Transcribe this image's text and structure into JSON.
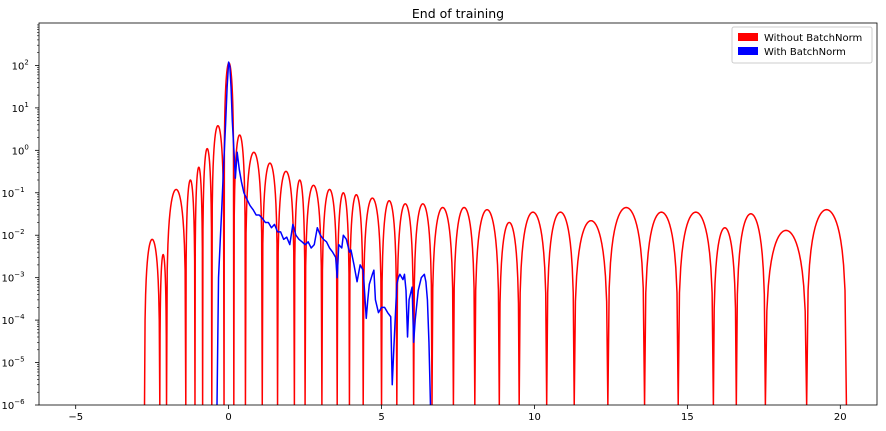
{
  "chart_data": {
    "type": "line",
    "title": "End of training",
    "xlabel": "",
    "ylabel": "",
    "yscale": "log",
    "xlim": [
      -6.2,
      21.2
    ],
    "ylim": [
      1e-06,
      1000
    ],
    "x_ticks": [
      {
        "value": -5,
        "label": "−5"
      },
      {
        "value": 0,
        "label": "0"
      },
      {
        "value": 5,
        "label": "5"
      },
      {
        "value": 10,
        "label": "10"
      },
      {
        "value": 15,
        "label": "15"
      },
      {
        "value": 20,
        "label": "20"
      }
    ],
    "y_ticks": [
      {
        "exp": 2,
        "label": "10",
        "sup": "2"
      },
      {
        "exp": 1,
        "label": "10",
        "sup": "1"
      },
      {
        "exp": 0,
        "label": "10",
        "sup": "0"
      },
      {
        "exp": -1,
        "label": "10",
        "sup": "−1"
      },
      {
        "exp": -2,
        "label": "10",
        "sup": "−2"
      },
      {
        "exp": -3,
        "label": "10",
        "sup": "−3"
      },
      {
        "exp": -4,
        "label": "10",
        "sup": "−4"
      },
      {
        "exp": -5,
        "label": "10",
        "sup": "−5"
      },
      {
        "exp": -6,
        "label": "10",
        "sup": "−6"
      }
    ],
    "grid": false,
    "legend_position": "top-right",
    "series": [
      {
        "name": "Without BatchNorm",
        "color": "#ff0000",
        "lobes": [
          {
            "start": -2.75,
            "end": -2.25,
            "peak": 0.008
          },
          {
            "start": -2.25,
            "end": -2.03,
            "peak": 0.0035
          },
          {
            "start": -2.03,
            "end": -1.4,
            "peak": 0.12
          },
          {
            "start": -1.4,
            "end": -1.1,
            "peak": 0.2
          },
          {
            "start": -1.1,
            "end": -0.85,
            "peak": 0.4
          },
          {
            "start": -0.85,
            "end": -0.55,
            "peak": 1.1
          },
          {
            "start": -0.55,
            "end": -0.15,
            "peak": 3.8
          },
          {
            "start": -0.15,
            "end": 0.17,
            "peak": 115
          },
          {
            "start": 0.17,
            "end": 0.55,
            "peak": 2.3
          },
          {
            "start": 0.55,
            "end": 1.1,
            "peak": 0.9
          },
          {
            "start": 1.1,
            "end": 1.6,
            "peak": 0.5
          },
          {
            "start": 1.6,
            "end": 2.15,
            "peak": 0.32
          },
          {
            "start": 2.15,
            "end": 2.5,
            "peak": 0.2
          },
          {
            "start": 2.5,
            "end": 3.05,
            "peak": 0.15
          },
          {
            "start": 3.05,
            "end": 3.55,
            "peak": 0.12
          },
          {
            "start": 3.55,
            "end": 3.95,
            "peak": 0.1
          },
          {
            "start": 3.95,
            "end": 4.4,
            "peak": 0.09
          },
          {
            "start": 4.4,
            "end": 5.0,
            "peak": 0.075
          },
          {
            "start": 5.0,
            "end": 5.5,
            "peak": 0.065
          },
          {
            "start": 5.5,
            "end": 6.05,
            "peak": 0.055
          },
          {
            "start": 6.05,
            "end": 6.65,
            "peak": 0.055
          },
          {
            "start": 6.65,
            "end": 7.35,
            "peak": 0.045
          },
          {
            "start": 7.35,
            "end": 8.05,
            "peak": 0.045
          },
          {
            "start": 8.05,
            "end": 8.85,
            "peak": 0.04
          },
          {
            "start": 8.85,
            "end": 9.5,
            "peak": 0.02
          },
          {
            "start": 9.5,
            "end": 10.4,
            "peak": 0.035
          },
          {
            "start": 10.4,
            "end": 11.3,
            "peak": 0.035
          },
          {
            "start": 11.3,
            "end": 12.4,
            "peak": 0.022
          },
          {
            "start": 12.4,
            "end": 13.6,
            "peak": 0.045
          },
          {
            "start": 13.6,
            "end": 14.7,
            "peak": 0.035
          },
          {
            "start": 14.7,
            "end": 15.85,
            "peak": 0.035
          },
          {
            "start": 15.85,
            "end": 16.6,
            "peak": 0.015
          },
          {
            "start": 16.6,
            "end": 17.55,
            "peak": 0.032
          },
          {
            "start": 17.55,
            "end": 18.9,
            "peak": 0.013
          },
          {
            "start": 18.9,
            "end": 20.2,
            "peak": 0.04
          }
        ]
      },
      {
        "name": "With BatchNorm",
        "color": "#0000ff",
        "points": [
          [
            -0.38,
            1e-06
          ],
          [
            -0.33,
            0.001
          ],
          [
            -0.28,
            0.006
          ],
          [
            -0.22,
            0.05
          ],
          [
            -0.16,
            0.5
          ],
          [
            -0.1,
            4
          ],
          [
            -0.05,
            30
          ],
          [
            0.0,
            120
          ],
          [
            0.04,
            95
          ],
          [
            0.08,
            30
          ],
          [
            0.12,
            5
          ],
          [
            0.18,
            0.8
          ],
          [
            0.22,
            0.22
          ],
          [
            0.28,
            0.9
          ],
          [
            0.35,
            0.35
          ],
          [
            0.42,
            0.18
          ],
          [
            0.5,
            0.1
          ],
          [
            0.6,
            0.07
          ],
          [
            0.7,
            0.05
          ],
          [
            0.8,
            0.04
          ],
          [
            0.9,
            0.03
          ],
          [
            1.0,
            0.03
          ],
          [
            1.1,
            0.025
          ],
          [
            1.2,
            0.02
          ],
          [
            1.3,
            0.02
          ],
          [
            1.4,
            0.015
          ],
          [
            1.5,
            0.018
          ],
          [
            1.6,
            0.012
          ],
          [
            1.7,
            0.012
          ],
          [
            1.8,
            0.008
          ],
          [
            1.9,
            0.009
          ],
          [
            2.0,
            0.006
          ],
          [
            2.1,
            0.018
          ],
          [
            2.2,
            0.01
          ],
          [
            2.3,
            0.008
          ],
          [
            2.4,
            0.007
          ],
          [
            2.5,
            0.006
          ],
          [
            2.6,
            0.007
          ],
          [
            2.7,
            0.005
          ],
          [
            2.8,
            0.006
          ],
          [
            2.9,
            0.015
          ],
          [
            3.0,
            0.01
          ],
          [
            3.1,
            0.008
          ],
          [
            3.2,
            0.007
          ],
          [
            3.3,
            0.005
          ],
          [
            3.4,
            0.004
          ],
          [
            3.5,
            0.003
          ],
          [
            3.55,
            0.001
          ],
          [
            3.6,
            0.006
          ],
          [
            3.7,
            0.005
          ],
          [
            3.75,
            0.01
          ],
          [
            3.85,
            0.008
          ],
          [
            3.95,
            0.004
          ],
          [
            4.0,
            0.0045
          ],
          [
            4.1,
            0.002
          ],
          [
            4.2,
            0.0008
          ],
          [
            4.3,
            0.002
          ],
          [
            4.4,
            0.0015
          ],
          [
            4.5,
            0.00011
          ],
          [
            4.55,
            0.0003
          ],
          [
            4.6,
            0.0007
          ],
          [
            4.7,
            0.0012
          ],
          [
            4.75,
            0.0015
          ],
          [
            4.8,
            0.0003
          ],
          [
            4.9,
            0.00015
          ],
          [
            5.0,
            0.0002
          ],
          [
            5.1,
            0.0002
          ],
          [
            5.2,
            0.00015
          ],
          [
            5.3,
            0.00012
          ],
          [
            5.35,
            3e-06
          ],
          [
            5.4,
            2e-05
          ],
          [
            5.5,
            0.0007
          ],
          [
            5.55,
            0.001
          ],
          [
            5.6,
            0.0012
          ],
          [
            5.7,
            0.0009
          ],
          [
            5.75,
            0.0012
          ],
          [
            5.8,
            0.0005
          ],
          [
            5.85,
            4e-05
          ],
          [
            5.9,
            0.0003
          ],
          [
            6.0,
            0.0006
          ],
          [
            6.05,
            3e-05
          ],
          [
            6.1,
            0.0001
          ],
          [
            6.2,
            0.0005
          ],
          [
            6.3,
            0.001
          ],
          [
            6.4,
            0.0012
          ],
          [
            6.45,
            0.0008
          ],
          [
            6.5,
            0.0003
          ],
          [
            6.55,
            3e-05
          ],
          [
            6.6,
            1e-06
          ]
        ]
      }
    ]
  }
}
